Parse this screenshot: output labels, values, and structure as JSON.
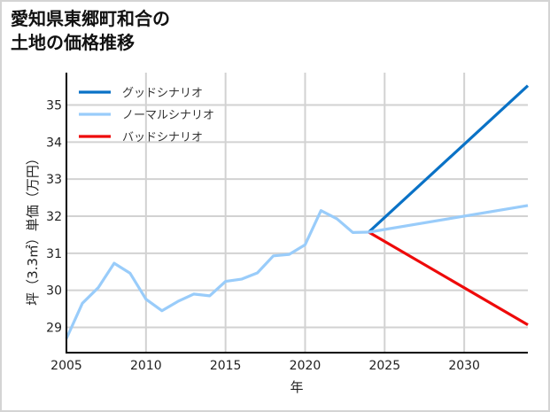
{
  "title_lines": [
    "愛知県東郷町和合の",
    "土地の価格推移"
  ],
  "chart_data": {
    "type": "line",
    "title": "愛知県東郷町和合の土地の価格推移",
    "xlabel": "年",
    "ylabel": "坪（3.3㎡）単価（万円）",
    "xlim": [
      2005,
      2034
    ],
    "ylim": [
      28.3,
      35.8
    ],
    "xticks": [
      2005,
      2010,
      2015,
      2020,
      2025,
      2030
    ],
    "yticks": [
      29,
      30,
      31,
      32,
      33,
      34,
      35
    ],
    "grid": true,
    "legend_position": "upper left",
    "historical": {
      "x": [
        2005,
        2006,
        2007,
        2008,
        2009,
        2010,
        2011,
        2012,
        2013,
        2014,
        2015,
        2016,
        2017,
        2018,
        2019,
        2020,
        2021,
        2022,
        2023,
        2024
      ],
      "y": [
        28.7,
        29.65,
        30.07,
        30.73,
        30.46,
        29.76,
        29.45,
        29.7,
        29.9,
        29.85,
        30.24,
        30.3,
        30.47,
        30.93,
        30.97,
        31.23,
        32.15,
        31.93,
        31.56,
        31.57
      ]
    },
    "series": [
      {
        "name": "グッドシナリオ",
        "color": "#0a72c6",
        "x": [
          2024,
          2034
        ],
        "y": [
          31.57,
          35.52
        ]
      },
      {
        "name": "ノーマルシナリオ",
        "color": "#99ccfa",
        "x": [
          2024,
          2034
        ],
        "y": [
          31.57,
          32.29
        ]
      },
      {
        "name": "バッドシナリオ",
        "color": "#ee0a0a",
        "x": [
          2024,
          2034
        ],
        "y": [
          31.57,
          29.07
        ]
      }
    ]
  }
}
